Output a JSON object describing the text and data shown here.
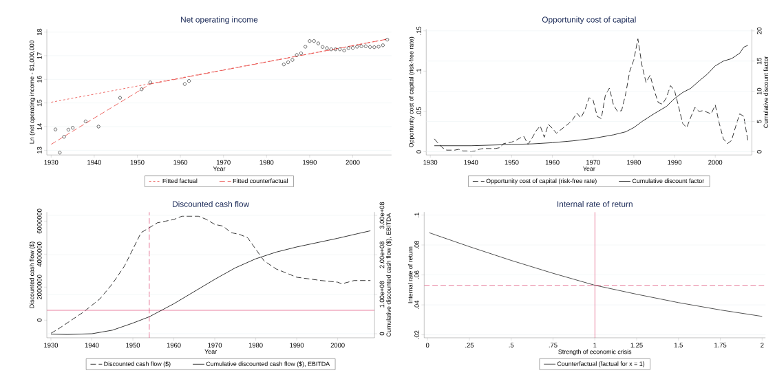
{
  "chart_data": [
    {
      "type": "scatter",
      "title": "Net operating income",
      "xlabel": "Year",
      "ylabel": "Ln (net operating income - $1,000,000",
      "xlim": [
        1929,
        2009
      ],
      "xticks": [
        1930,
        1940,
        1950,
        1960,
        1970,
        1980,
        1990,
        2000
      ],
      "ylim": [
        12.8,
        18.12
      ],
      "yticks": [
        13,
        14,
        15,
        16,
        17,
        18
      ],
      "grid": "y",
      "legend": "bottom",
      "series": [
        {
          "type": "scatter",
          "color": "#000000",
          "marker": "circle",
          "x": [
            1931,
            1932,
            1933,
            1934,
            1935,
            1938,
            1941,
            1946,
            1951,
            1953,
            1961,
            1962,
            1984,
            1985,
            1986,
            1987,
            1988,
            1989,
            1990,
            1991,
            1992,
            1993,
            1994,
            1995,
            1996,
            1997,
            1998,
            1999,
            2000,
            2001,
            2002,
            2003,
            2004,
            2005,
            2006,
            2007,
            2008
          ],
          "values": [
            13.88,
            12.9,
            13.57,
            13.87,
            13.95,
            14.22,
            14.0,
            15.22,
            15.58,
            15.87,
            15.8,
            15.93,
            16.63,
            16.72,
            16.82,
            17.03,
            17.1,
            17.38,
            17.62,
            17.62,
            17.52,
            17.37,
            17.32,
            17.27,
            17.27,
            17.27,
            17.22,
            17.32,
            17.33,
            17.38,
            17.4,
            17.4,
            17.37,
            17.36,
            17.38,
            17.44,
            17.68
          ]
        },
        {
          "type": "line",
          "name": "Fitted factual",
          "color": "#e8413c",
          "line_style": "dashed",
          "x": [
            1930,
            2008
          ],
          "values": [
            15.03,
            17.7
          ]
        },
        {
          "type": "line",
          "name": "Fitted counterfactual",
          "color": "#e8413c",
          "line_style": "dashed",
          "x": [
            1930,
            1953,
            2008
          ],
          "values": [
            13.25,
            15.8,
            17.7
          ]
        }
      ]
    },
    {
      "type": "line",
      "title": "Opportunity cost of capital",
      "xlabel": "Year",
      "ylabel": "Opportunity cost of capital (risk-free rate)",
      "y2label": "Cumulative discount factor",
      "xlim": [
        1929,
        2009
      ],
      "xticks": [
        1930,
        1940,
        1950,
        1960,
        1970,
        1980,
        1990,
        2000
      ],
      "ylim": [
        -0.004,
        0.152
      ],
      "yticks": [
        0,
        {
          "value": 0.05,
          "label": ".05"
        },
        {
          "value": 0.1,
          "label": ".1"
        },
        {
          "value": 0.15,
          "label": ".15"
        }
      ],
      "y2lim": [
        -0.533,
        20.27
      ],
      "y2ticks": [
        0,
        5,
        10,
        15,
        20
      ],
      "grid": "y",
      "legend": "bottom",
      "series": [
        {
          "name": "Opportunity cost of capital (risk-free rate)",
          "color": "#000000",
          "line_style": "dashed",
          "x": [
            1931,
            1932,
            1933,
            1934,
            1935,
            1936,
            1937,
            1938,
            1939,
            1940,
            1941,
            1942,
            1943,
            1944,
            1945,
            1946,
            1947,
            1948,
            1949,
            1950,
            1951,
            1952,
            1953,
            1954,
            1955,
            1956,
            1957,
            1958,
            1959,
            1960,
            1961,
            1962,
            1963,
            1964,
            1965,
            1966,
            1967,
            1968,
            1969,
            1970,
            1971,
            1972,
            1973,
            1974,
            1975,
            1976,
            1977,
            1978,
            1979,
            1980,
            1981,
            1982,
            1983,
            1984,
            1985,
            1986,
            1987,
            1988,
            1989,
            1990,
            1991,
            1992,
            1993,
            1994,
            1995,
            1996,
            1997,
            1998,
            1999,
            2000,
            2001,
            2002,
            2003,
            2004,
            2005,
            2006,
            2007,
            2008
          ],
          "values": [
            0.016,
            0.01,
            0.005,
            0.002,
            0.002,
            0.002,
            0.003,
            0.001,
            0.001,
            0.0,
            0.001,
            0.003,
            0.004,
            0.004,
            0.004,
            0.004,
            0.005,
            0.01,
            0.011,
            0.012,
            0.014,
            0.017,
            0.019,
            0.009,
            0.017,
            0.026,
            0.032,
            0.018,
            0.034,
            0.029,
            0.023,
            0.027,
            0.031,
            0.035,
            0.04,
            0.048,
            0.042,
            0.052,
            0.067,
            0.064,
            0.044,
            0.041,
            0.07,
            0.079,
            0.058,
            0.05,
            0.051,
            0.072,
            0.1,
            0.114,
            0.14,
            0.107,
            0.086,
            0.095,
            0.076,
            0.061,
            0.059,
            0.067,
            0.082,
            0.076,
            0.056,
            0.035,
            0.03,
            0.043,
            0.055,
            0.05,
            0.051,
            0.049,
            0.047,
            0.058,
            0.035,
            0.016,
            0.01,
            0.014,
            0.031,
            0.047,
            0.044,
            0.014
          ]
        },
        {
          "name": "Cumulative discount factor",
          "color": "#000000",
          "line_style": "solid",
          "axis": "y2",
          "x": [
            1931,
            1940,
            1950,
            1955,
            1960,
            1965,
            1970,
            1975,
            1978,
            1980,
            1982,
            1985,
            1988,
            1990,
            1992,
            1994,
            1996,
            1998,
            2000,
            2002,
            2004,
            2006,
            2007,
            2008
          ],
          "values": [
            1,
            1,
            1.2,
            1.3,
            1.5,
            1.8,
            2.2,
            2.8,
            3.3,
            4,
            5,
            6.3,
            7.5,
            8.8,
            9.8,
            10.5,
            11.7,
            12.8,
            14.2,
            15,
            15.4,
            16.3,
            17.3,
            17.6
          ]
        }
      ]
    },
    {
      "type": "line",
      "title": "Discounted cash flow",
      "xlabel": "Year",
      "ylabel": "Discounted cash flow ($)",
      "y2label": "Cumulative discounted cash flow ($), EBITDA",
      "xlim": [
        1929,
        2009
      ],
      "xticks": [
        1930,
        1940,
        1950,
        1960,
        1970,
        1980,
        1990,
        2000
      ],
      "ylim": [
        -1070000,
        6550000
      ],
      "yticks": [
        0,
        2000000,
        4000000,
        6000000
      ],
      "y2lim": [
        -10300000,
        308500000
      ],
      "y2ticks": [
        0,
        {
          "value": 100000000,
          "label": "1.00e+08"
        },
        {
          "value": 200000000,
          "label": "2.00e+08"
        },
        {
          "value": 300000000,
          "label": "3.00e+08"
        }
      ],
      "grid": "y",
      "legend": "bottom",
      "ref_lines": [
        {
          "axis": "x",
          "value": 1954,
          "color": "#dc3d6b",
          "line_style": "dashed"
        },
        {
          "axis": "y",
          "value": 600000,
          "color": "#dc3d6b",
          "line_style": "solid"
        }
      ],
      "series": [
        {
          "name": "Discounted cash flow ($)",
          "color": "#000000",
          "line_style": "dashed",
          "x": [
            1930,
            1932,
            1935,
            1938,
            1940,
            1942,
            1945,
            1948,
            1950,
            1952,
            1954,
            1956,
            1958,
            1960,
            1962,
            1964,
            1966,
            1968,
            1970,
            1972,
            1974,
            1976,
            1978,
            1980,
            1982,
            1985,
            1988,
            1990,
            1993,
            1996,
            2000,
            2001,
            2004,
            2006,
            2008
          ],
          "values": [
            -800000,
            -500000,
            0,
            500000,
            900000,
            1300000,
            2200000,
            3300000,
            4300000,
            5300000,
            5600000,
            5900000,
            6000000,
            6100000,
            6300000,
            6300000,
            6300000,
            6100000,
            5800000,
            5700000,
            5300000,
            5200000,
            5000000,
            4300000,
            3600000,
            3100000,
            2800000,
            2600000,
            2500000,
            2400000,
            2300000,
            2200000,
            2400000,
            2400000,
            2400000
          ]
        },
        {
          "name": "Cumulative discounted cash flow ($), EBITDA",
          "color": "#000000",
          "line_style": "solid",
          "axis": "y2",
          "x": [
            1930,
            1934,
            1940,
            1945,
            1950,
            1954,
            1960,
            1965,
            1970,
            1975,
            1980,
            1985,
            1990,
            1995,
            2000,
            2005,
            2008
          ],
          "values": [
            -1000000,
            -2000000,
            0,
            9000000,
            27000000,
            43000000,
            76000000,
            107000000,
            138000000,
            167000000,
            190000000,
            207000000,
            220000000,
            231000000,
            242000000,
            254000000,
            261000000
          ]
        }
      ]
    },
    {
      "type": "line",
      "title": "Internal rate of return",
      "xlabel": "Strength of economic crisis",
      "ylabel": "Internal rate of return",
      "xlim": [
        -0.02,
        2.02
      ],
      "xticks": [
        0,
        {
          "value": 0.25,
          "label": ".25"
        },
        {
          "value": 0.5,
          "label": ".5"
        },
        {
          "value": 0.75,
          "label": ".75"
        },
        1,
        1.25,
        1.5,
        1.75,
        2
      ],
      "ylim": [
        0.018,
        0.102
      ],
      "yticks": [
        {
          "value": 0.02,
          "label": ".02"
        },
        {
          "value": 0.04,
          "label": ".04"
        },
        {
          "value": 0.06,
          "label": ".06"
        },
        {
          "value": 0.08,
          "label": ".08"
        },
        {
          "value": 0.1,
          "label": ".1"
        }
      ],
      "grid": "y",
      "legend": "bottom",
      "ref_lines": [
        {
          "axis": "x",
          "value": 1,
          "color": "#dc3d6b",
          "line_style": "solid"
        },
        {
          "axis": "y",
          "value": 0.053,
          "color": "#dc3d6b",
          "line_style": "dashed"
        }
      ],
      "series": [
        {
          "name": "Counterfactual (factual for x = 1)",
          "color": "#222222",
          "line_style": "solid",
          "x": [
            0.01,
            0.25,
            0.5,
            0.75,
            1,
            1.25,
            1.5,
            1.75,
            2
          ],
          "values": [
            0.0882,
            0.0789,
            0.0697,
            0.0611,
            0.0531,
            0.0471,
            0.0415,
            0.0366,
            0.0323
          ]
        }
      ]
    }
  ]
}
